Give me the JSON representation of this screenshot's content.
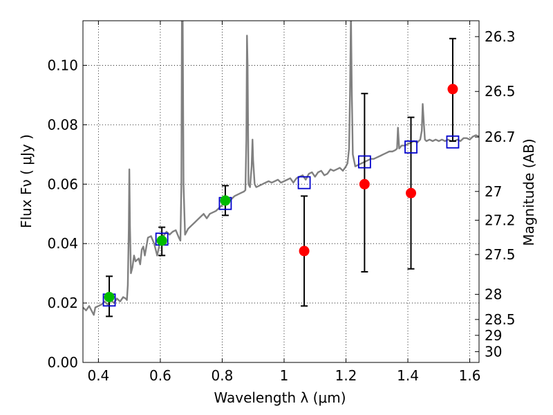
{
  "chart_data": {
    "type": "scatter",
    "x_label": "Wavelength  λ (μm)",
    "y_label": "Flux  Fν  ( μJy )",
    "y2_label": "Magnitude (AB)",
    "xlim": [
      0.35,
      1.63
    ],
    "ylim": [
      0.0,
      0.115
    ],
    "grid": true,
    "x_ticks": [
      {
        "value": 0.4,
        "label": "0.4"
      },
      {
        "value": 0.6,
        "label": "0.6"
      },
      {
        "value": 0.8,
        "label": "0.8"
      },
      {
        "value": 1.0,
        "label": "1"
      },
      {
        "value": 1.2,
        "label": "1.2"
      },
      {
        "value": 1.4,
        "label": "1.4"
      },
      {
        "value": 1.6,
        "label": "1.6"
      }
    ],
    "y_ticks": [
      {
        "value": 0.0,
        "label": "0.00"
      },
      {
        "value": 0.02,
        "label": "0.02"
      },
      {
        "value": 0.04,
        "label": "0.04"
      },
      {
        "value": 0.06,
        "label": "0.06"
      },
      {
        "value": 0.08,
        "label": "0.08"
      },
      {
        "value": 0.1,
        "label": "0.10"
      }
    ],
    "mag_ticks": [
      {
        "value": 26.3,
        "label": "26.3"
      },
      {
        "value": 26.5,
        "label": "26.5"
      },
      {
        "value": 26.7,
        "label": "26.7"
      },
      {
        "value": 27.0,
        "label": "27"
      },
      {
        "value": 27.2,
        "label": "27.2"
      },
      {
        "value": 27.5,
        "label": "27.5"
      },
      {
        "value": 28.0,
        "label": "28"
      },
      {
        "value": 28.5,
        "label": "28.5"
      },
      {
        "value": 29.0,
        "label": "29"
      },
      {
        "value": 30.0,
        "label": "30"
      }
    ],
    "colors": {
      "spectrum": "#808080",
      "detection": "#00bb00",
      "other": "#ff0000",
      "model_box": "#0000cc",
      "errorbar": "#000000"
    },
    "spectrum": [
      [
        0.35,
        0.0185
      ],
      [
        0.36,
        0.0175
      ],
      [
        0.37,
        0.019
      ],
      [
        0.38,
        0.017
      ],
      [
        0.385,
        0.016
      ],
      [
        0.39,
        0.0185
      ],
      [
        0.4,
        0.019
      ],
      [
        0.41,
        0.0195
      ],
      [
        0.42,
        0.0205
      ],
      [
        0.43,
        0.0195
      ],
      [
        0.44,
        0.021
      ],
      [
        0.45,
        0.02
      ],
      [
        0.46,
        0.0215
      ],
      [
        0.47,
        0.0205
      ],
      [
        0.48,
        0.022
      ],
      [
        0.488,
        0.0215
      ],
      [
        0.492,
        0.021
      ],
      [
        0.495,
        0.026
      ],
      [
        0.498,
        0.045
      ],
      [
        0.5,
        0.065
      ],
      [
        0.502,
        0.046
      ],
      [
        0.505,
        0.03
      ],
      [
        0.51,
        0.032
      ],
      [
        0.515,
        0.036
      ],
      [
        0.52,
        0.034
      ],
      [
        0.53,
        0.035
      ],
      [
        0.535,
        0.033
      ],
      [
        0.54,
        0.038
      ],
      [
        0.545,
        0.039
      ],
      [
        0.55,
        0.036
      ],
      [
        0.56,
        0.042
      ],
      [
        0.57,
        0.0425
      ],
      [
        0.58,
        0.04
      ],
      [
        0.59,
        0.036
      ],
      [
        0.6,
        0.041
      ],
      [
        0.605,
        0.043
      ],
      [
        0.61,
        0.0425
      ],
      [
        0.62,
        0.044
      ],
      [
        0.63,
        0.043
      ],
      [
        0.64,
        0.044
      ],
      [
        0.65,
        0.0445
      ],
      [
        0.66,
        0.042
      ],
      [
        0.665,
        0.041
      ],
      [
        0.668,
        0.06
      ],
      [
        0.67,
        0.125
      ],
      [
        0.672,
        0.125
      ],
      [
        0.675,
        0.06
      ],
      [
        0.68,
        0.043
      ],
      [
        0.69,
        0.045
      ],
      [
        0.7,
        0.046
      ],
      [
        0.71,
        0.047
      ],
      [
        0.72,
        0.048
      ],
      [
        0.73,
        0.049
      ],
      [
        0.74,
        0.05
      ],
      [
        0.75,
        0.0485
      ],
      [
        0.76,
        0.05
      ],
      [
        0.77,
        0.0505
      ],
      [
        0.78,
        0.051
      ],
      [
        0.79,
        0.052
      ],
      [
        0.8,
        0.053
      ],
      [
        0.81,
        0.0535
      ],
      [
        0.82,
        0.054
      ],
      [
        0.83,
        0.055
      ],
      [
        0.84,
        0.056
      ],
      [
        0.85,
        0.0565
      ],
      [
        0.86,
        0.057
      ],
      [
        0.87,
        0.0575
      ],
      [
        0.875,
        0.058
      ],
      [
        0.878,
        0.075
      ],
      [
        0.88,
        0.11
      ],
      [
        0.882,
        0.1
      ],
      [
        0.885,
        0.06
      ],
      [
        0.89,
        0.059
      ],
      [
        0.895,
        0.066
      ],
      [
        0.898,
        0.075
      ],
      [
        0.9,
        0.068
      ],
      [
        0.905,
        0.06
      ],
      [
        0.91,
        0.059
      ],
      [
        0.92,
        0.0595
      ],
      [
        0.93,
        0.06
      ],
      [
        0.94,
        0.0605
      ],
      [
        0.95,
        0.061
      ],
      [
        0.96,
        0.0605
      ],
      [
        0.97,
        0.061
      ],
      [
        0.98,
        0.0615
      ],
      [
        0.99,
        0.0605
      ],
      [
        1.0,
        0.061
      ],
      [
        1.01,
        0.0615
      ],
      [
        1.02,
        0.062
      ],
      [
        1.03,
        0.0605
      ],
      [
        1.04,
        0.062
      ],
      [
        1.05,
        0.0625
      ],
      [
        1.06,
        0.063
      ],
      [
        1.07,
        0.0615
      ],
      [
        1.08,
        0.0635
      ],
      [
        1.09,
        0.064
      ],
      [
        1.1,
        0.0625
      ],
      [
        1.11,
        0.064
      ],
      [
        1.12,
        0.0645
      ],
      [
        1.13,
        0.063
      ],
      [
        1.14,
        0.0635
      ],
      [
        1.15,
        0.065
      ],
      [
        1.16,
        0.0645
      ],
      [
        1.17,
        0.065
      ],
      [
        1.18,
        0.0655
      ],
      [
        1.19,
        0.0645
      ],
      [
        1.2,
        0.066
      ],
      [
        1.205,
        0.067
      ],
      [
        1.21,
        0.072
      ],
      [
        1.213,
        0.09
      ],
      [
        1.216,
        0.118
      ],
      [
        1.219,
        0.09
      ],
      [
        1.222,
        0.07
      ],
      [
        1.23,
        0.066
      ],
      [
        1.24,
        0.0665
      ],
      [
        1.25,
        0.067
      ],
      [
        1.26,
        0.0675
      ],
      [
        1.27,
        0.068
      ],
      [
        1.28,
        0.0685
      ],
      [
        1.29,
        0.0685
      ],
      [
        1.3,
        0.069
      ],
      [
        1.31,
        0.0695
      ],
      [
        1.32,
        0.07
      ],
      [
        1.33,
        0.0705
      ],
      [
        1.34,
        0.071
      ],
      [
        1.35,
        0.071
      ],
      [
        1.36,
        0.0715
      ],
      [
        1.365,
        0.072
      ],
      [
        1.368,
        0.079
      ],
      [
        1.372,
        0.072
      ],
      [
        1.38,
        0.073
      ],
      [
        1.39,
        0.073
      ],
      [
        1.4,
        0.0735
      ],
      [
        1.41,
        0.074
      ],
      [
        1.42,
        0.0745
      ],
      [
        1.43,
        0.074
      ],
      [
        1.44,
        0.075
      ],
      [
        1.445,
        0.078
      ],
      [
        1.448,
        0.087
      ],
      [
        1.452,
        0.08
      ],
      [
        1.455,
        0.075
      ],
      [
        1.46,
        0.0745
      ],
      [
        1.47,
        0.075
      ],
      [
        1.48,
        0.0745
      ],
      [
        1.49,
        0.075
      ],
      [
        1.5,
        0.0745
      ],
      [
        1.51,
        0.075
      ],
      [
        1.52,
        0.0745
      ],
      [
        1.53,
        0.075
      ],
      [
        1.54,
        0.0745
      ],
      [
        1.55,
        0.0745
      ],
      [
        1.56,
        0.075
      ],
      [
        1.57,
        0.0745
      ],
      [
        1.58,
        0.0755
      ],
      [
        1.59,
        0.0755
      ],
      [
        1.6,
        0.075
      ],
      [
        1.61,
        0.076
      ],
      [
        1.62,
        0.0765
      ],
      [
        1.63,
        0.076
      ]
    ],
    "points": [
      {
        "x": 0.435,
        "y": 0.022,
        "err_low": 0.0155,
        "err_high": 0.029,
        "color": "green",
        "model": 0.021
      },
      {
        "x": 0.605,
        "y": 0.041,
        "err_low": 0.036,
        "err_high": 0.0455,
        "color": "green",
        "model": 0.0415
      },
      {
        "x": 0.81,
        "y": 0.0545,
        "err_low": 0.0495,
        "err_high": 0.0595,
        "color": "green",
        "model": 0.0535
      },
      {
        "x": 1.065,
        "y": 0.0375,
        "err_low": 0.019,
        "err_high": 0.056,
        "color": "red",
        "model": 0.0605
      },
      {
        "x": 1.26,
        "y": 0.06,
        "err_low": 0.0305,
        "err_high": 0.0905,
        "color": "red",
        "model": 0.0675
      },
      {
        "x": 1.41,
        "y": 0.057,
        "err_low": 0.0315,
        "err_high": 0.0825,
        "color": "red",
        "model": 0.0725
      },
      {
        "x": 1.545,
        "y": 0.092,
        "err_low": 0.0745,
        "err_high": 0.109,
        "color": "red",
        "model": 0.0742
      }
    ]
  }
}
